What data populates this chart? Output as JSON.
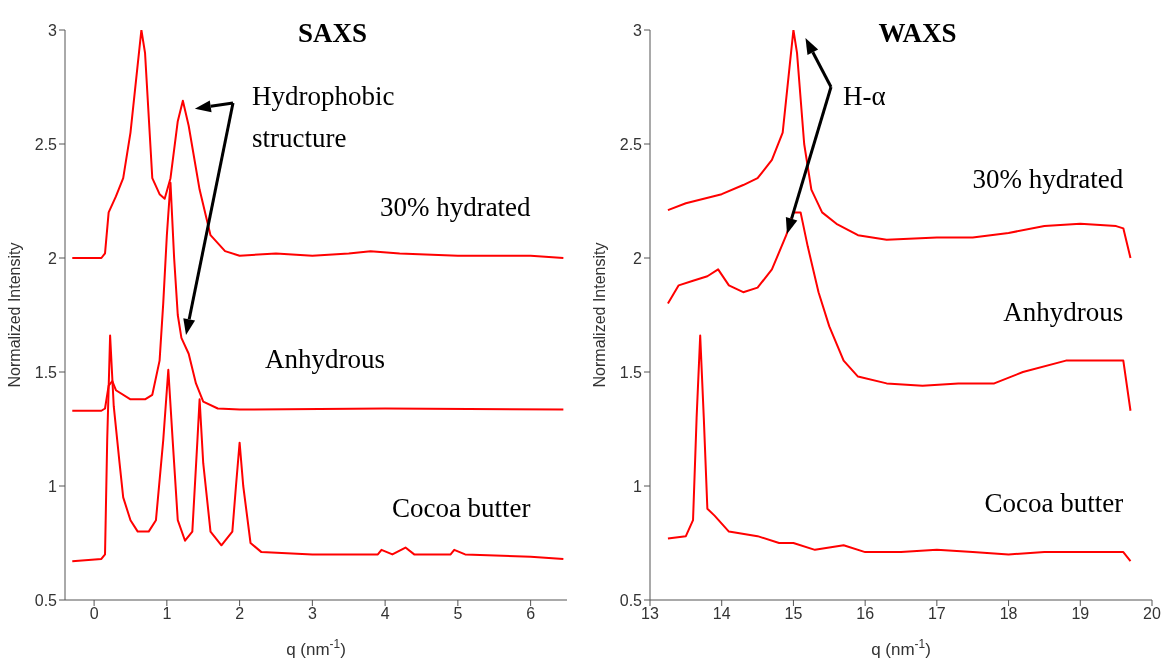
{
  "chart_data": [
    {
      "type": "line",
      "title": "SAXS",
      "xlabel": "q (nm$^{-1}$)",
      "ylabel": "Normalized Intensity",
      "xlim": [
        -0.4,
        6.5
      ],
      "xticks": [
        0,
        1,
        2,
        3,
        4,
        5,
        6
      ],
      "ylim": [
        0.5,
        3
      ],
      "yticks": [
        0.5,
        1,
        1.5,
        2,
        2.5,
        3
      ],
      "grid": false,
      "legend": false,
      "annotations": [
        {
          "text": "Hydrophobic structure",
          "x": 1.22,
          "y": 2.69
        }
      ],
      "series": [
        {
          "name": "30% hydrated",
          "color": "#ff0000",
          "x": [
            -0.3,
            0.1,
            0.15,
            0.2,
            0.3,
            0.4,
            0.5,
            0.6,
            0.65,
            0.7,
            0.8,
            0.9,
            0.97,
            1.05,
            1.15,
            1.22,
            1.3,
            1.45,
            1.6,
            1.8,
            2.0,
            2.5,
            3,
            3.5,
            3.8,
            4.2,
            5,
            6,
            6.45
          ],
          "values": [
            2.0,
            2.0,
            2.02,
            2.2,
            2.27,
            2.35,
            2.55,
            2.85,
            3.0,
            2.9,
            2.35,
            2.28,
            2.26,
            2.35,
            2.6,
            2.69,
            2.58,
            2.3,
            2.1,
            2.03,
            2.01,
            2.02,
            2.01,
            2.02,
            2.03,
            2.02,
            2.01,
            2.01,
            2.0
          ]
        },
        {
          "name": "Anhydrous",
          "color": "#ff0000",
          "x": [
            -0.3,
            0.1,
            0.15,
            0.2,
            0.25,
            0.3,
            0.5,
            0.7,
            0.8,
            0.9,
            0.95,
            1.0,
            1.05,
            1.1,
            1.15,
            1.2,
            1.3,
            1.4,
            1.5,
            1.7,
            2,
            4,
            6.45
          ],
          "values": [
            1.33,
            1.33,
            1.34,
            1.44,
            1.46,
            1.42,
            1.38,
            1.38,
            1.4,
            1.55,
            1.8,
            2.1,
            2.33,
            2.0,
            1.75,
            1.65,
            1.58,
            1.45,
            1.37,
            1.34,
            1.335,
            1.34,
            1.335
          ]
        },
        {
          "name": "Cocoa butter",
          "color": "#ff0000",
          "x": [
            -0.3,
            0.1,
            0.15,
            0.18,
            0.22,
            0.27,
            0.35,
            0.4,
            0.5,
            0.6,
            0.75,
            0.85,
            0.95,
            1.02,
            1.08,
            1.15,
            1.25,
            1.35,
            1.42,
            1.45,
            1.5,
            1.6,
            1.75,
            1.9,
            1.95,
            2.0,
            2.05,
            2.15,
            2.3,
            3,
            3.9,
            3.95,
            4.1,
            4.28,
            4.4,
            4.9,
            4.95,
            5.1,
            6,
            6.45
          ],
          "values": [
            0.67,
            0.68,
            0.7,
            1.2,
            1.66,
            1.35,
            1.1,
            0.95,
            0.85,
            0.8,
            0.8,
            0.85,
            1.2,
            1.51,
            1.2,
            0.85,
            0.76,
            0.8,
            1.2,
            1.38,
            1.1,
            0.8,
            0.74,
            0.8,
            1.0,
            1.19,
            1.0,
            0.75,
            0.71,
            0.7,
            0.7,
            0.72,
            0.7,
            0.73,
            0.7,
            0.7,
            0.72,
            0.7,
            0.69,
            0.68
          ]
        }
      ]
    },
    {
      "type": "line",
      "title": "WAXS",
      "xlabel": "q (nm$^{-1}$)",
      "ylabel": "Normalized Intensity",
      "xlim": [
        13,
        20
      ],
      "xticks": [
        13,
        14,
        15,
        16,
        17,
        18,
        19,
        20
      ],
      "ylim": [
        0.5,
        3
      ],
      "yticks": [
        0.5,
        1,
        1.5,
        2,
        2.5,
        3
      ],
      "grid": false,
      "legend": false,
      "annotations": [
        {
          "text": "H-α",
          "x": 15.0,
          "y": 3.0
        }
      ],
      "series": [
        {
          "name": "30% hydrated",
          "color": "#ff0000",
          "x": [
            13.25,
            13.5,
            14,
            14.3,
            14.5,
            14.7,
            14.85,
            14.95,
            15.0,
            15.05,
            15.15,
            15.25,
            15.4,
            15.6,
            15.9,
            16.3,
            17,
            17.5,
            18,
            18.5,
            19,
            19.5,
            19.6,
            19.7
          ],
          "values": [
            2.21,
            2.24,
            2.28,
            2.32,
            2.35,
            2.43,
            2.55,
            2.85,
            3.0,
            2.9,
            2.5,
            2.3,
            2.2,
            2.15,
            2.1,
            2.08,
            2.09,
            2.09,
            2.11,
            2.14,
            2.15,
            2.14,
            2.13,
            2.0
          ]
        },
        {
          "name": "Anhydrous",
          "color": "#ff0000",
          "x": [
            13.25,
            13.4,
            13.6,
            13.8,
            13.95,
            14.1,
            14.3,
            14.5,
            14.7,
            14.9,
            15.0,
            15.1,
            15.2,
            15.35,
            15.5,
            15.7,
            15.9,
            16.3,
            16.8,
            17.3,
            17.8,
            18.2,
            18.8,
            19.3,
            19.6,
            19.7
          ],
          "values": [
            1.8,
            1.88,
            1.9,
            1.92,
            1.95,
            1.88,
            1.85,
            1.87,
            1.95,
            2.1,
            2.2,
            2.2,
            2.05,
            1.85,
            1.7,
            1.55,
            1.48,
            1.45,
            1.44,
            1.45,
            1.45,
            1.5,
            1.55,
            1.55,
            1.55,
            1.33
          ]
        },
        {
          "name": "Cocoa butter",
          "color": "#ff0000",
          "x": [
            13.25,
            13.5,
            13.6,
            13.65,
            13.7,
            13.75,
            13.8,
            13.9,
            14.1,
            14.5,
            14.8,
            15,
            15.3,
            15.7,
            16,
            16.5,
            17,
            17.5,
            18,
            18.5,
            19,
            19.6,
            19.7
          ],
          "values": [
            0.77,
            0.78,
            0.85,
            1.3,
            1.66,
            1.3,
            0.9,
            0.87,
            0.8,
            0.78,
            0.75,
            0.75,
            0.72,
            0.74,
            0.71,
            0.71,
            0.72,
            0.71,
            0.7,
            0.71,
            0.71,
            0.71,
            0.67
          ]
        }
      ]
    }
  ]
}
